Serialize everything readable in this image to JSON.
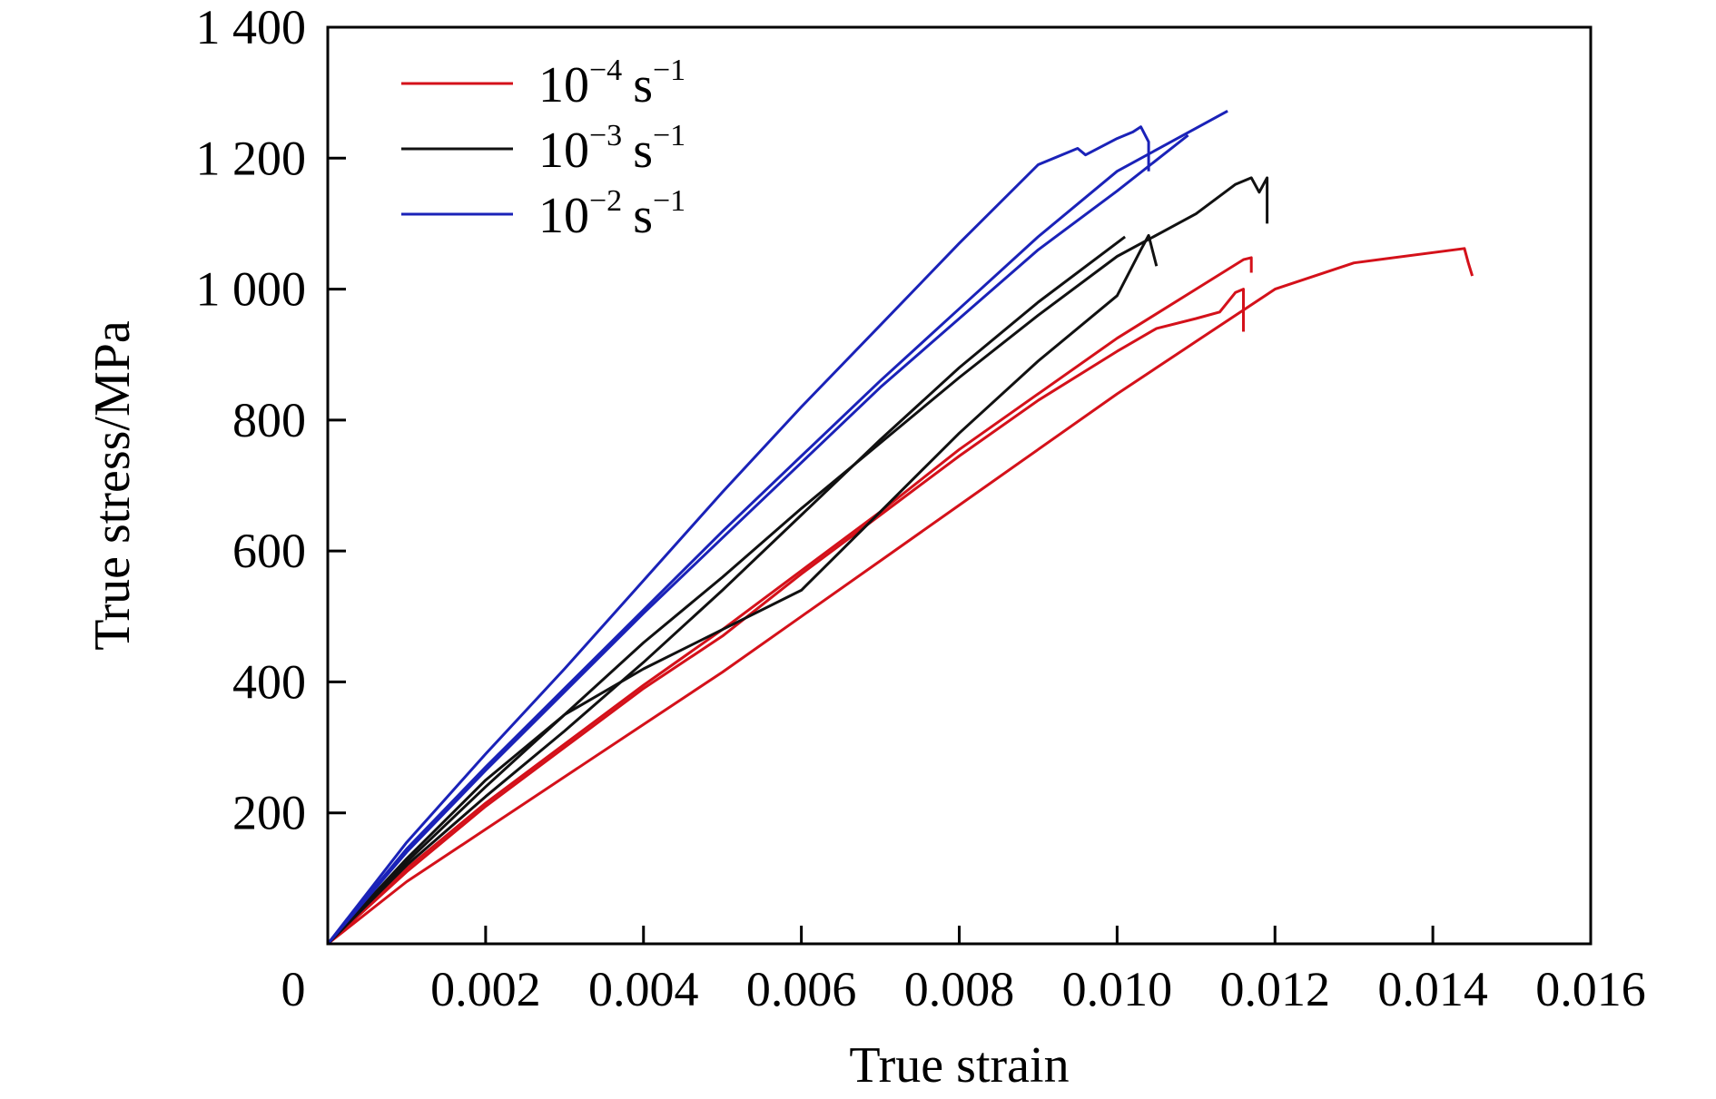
{
  "chart_data": {
    "type": "line",
    "xlabel": "True strain",
    "ylabel": "True stress/MPa",
    "xlim": [
      0,
      0.016
    ],
    "ylim": [
      0,
      1400
    ],
    "x_ticks": [
      {
        "value": 0,
        "label": "0"
      },
      {
        "value": 0.002,
        "label": "0.002"
      },
      {
        "value": 0.004,
        "label": "0.004"
      },
      {
        "value": 0.006,
        "label": "0.006"
      },
      {
        "value": 0.008,
        "label": "0.008"
      },
      {
        "value": 0.01,
        "label": "0.010"
      },
      {
        "value": 0.012,
        "label": "0.012"
      },
      {
        "value": 0.014,
        "label": "0.014"
      },
      {
        "value": 0.016,
        "label": "0.016"
      }
    ],
    "y_ticks": [
      {
        "value": 200,
        "label": "200"
      },
      {
        "value": 400,
        "label": "400"
      },
      {
        "value": 600,
        "label": "600"
      },
      {
        "value": 800,
        "label": "800"
      },
      {
        "value": 1000,
        "label": "1 000"
      },
      {
        "value": 1200,
        "label": "1 200"
      },
      {
        "value": 1400,
        "label": "1 400"
      }
    ],
    "legend": {
      "position": "top-left",
      "entries": [
        {
          "base": "10",
          "exp": "−4",
          "unit": "s",
          "unit_exp": "−1",
          "color": "#d4111a"
        },
        {
          "base": "10",
          "exp": "−3",
          "unit": "s",
          "unit_exp": "−1",
          "color": "#111111"
        },
        {
          "base": "10",
          "exp": "−2",
          "unit": "s",
          "unit_exp": "−1",
          "color": "#1a22b8"
        }
      ]
    },
    "series": [
      {
        "name": "10^-4 s^-1 (specimen 1)",
        "color": "#d4111a",
        "points": [
          [
            0,
            0
          ],
          [
            0.001,
            95
          ],
          [
            0.002,
            175
          ],
          [
            0.003,
            255
          ],
          [
            0.004,
            335
          ],
          [
            0.005,
            415
          ],
          [
            0.006,
            500
          ],
          [
            0.007,
            585
          ],
          [
            0.008,
            670
          ],
          [
            0.009,
            755
          ],
          [
            0.01,
            840
          ],
          [
            0.011,
            920
          ],
          [
            0.012,
            1000
          ],
          [
            0.013,
            1040
          ],
          [
            0.0144,
            1062
          ],
          [
            0.01445,
            1040
          ],
          [
            0.0145,
            1020
          ]
        ]
      },
      {
        "name": "10^-4 s^-1 (specimen 2)",
        "color": "#d4111a",
        "points": [
          [
            0,
            0
          ],
          [
            0.001,
            110
          ],
          [
            0.002,
            210
          ],
          [
            0.003,
            300
          ],
          [
            0.004,
            390
          ],
          [
            0.005,
            470
          ],
          [
            0.006,
            565
          ],
          [
            0.007,
            655
          ],
          [
            0.008,
            745
          ],
          [
            0.009,
            830
          ],
          [
            0.01,
            905
          ],
          [
            0.0105,
            940
          ],
          [
            0.011,
            955
          ],
          [
            0.0113,
            965
          ],
          [
            0.0115,
            995
          ],
          [
            0.0116,
            1000
          ],
          [
            0.0116,
            935
          ]
        ]
      },
      {
        "name": "10^-4 s^-1 (specimen 3)",
        "color": "#d4111a",
        "points": [
          [
            0,
            0
          ],
          [
            0.001,
            115
          ],
          [
            0.002,
            215
          ],
          [
            0.003,
            305
          ],
          [
            0.004,
            395
          ],
          [
            0.005,
            480
          ],
          [
            0.006,
            570
          ],
          [
            0.007,
            660
          ],
          [
            0.008,
            755
          ],
          [
            0.009,
            840
          ],
          [
            0.01,
            925
          ],
          [
            0.011,
            1000
          ],
          [
            0.0116,
            1045
          ],
          [
            0.0117,
            1048
          ],
          [
            0.0117,
            1025
          ]
        ]
      },
      {
        "name": "10^-3 s^-1 (specimen 1)",
        "color": "#111111",
        "points": [
          [
            0,
            0
          ],
          [
            0.001,
            125
          ],
          [
            0.002,
            240
          ],
          [
            0.003,
            350
          ],
          [
            0.004,
            460
          ],
          [
            0.005,
            560
          ],
          [
            0.006,
            665
          ],
          [
            0.007,
            765
          ],
          [
            0.008,
            865
          ],
          [
            0.009,
            960
          ],
          [
            0.01,
            1050
          ],
          [
            0.011,
            1115
          ],
          [
            0.0115,
            1160
          ],
          [
            0.0117,
            1170
          ],
          [
            0.0118,
            1148
          ],
          [
            0.0119,
            1170
          ],
          [
            0.0119,
            1100
          ]
        ]
      },
      {
        "name": "10^-3 s^-1 (specimen 2)",
        "color": "#111111",
        "points": [
          [
            0,
            0
          ],
          [
            0.001,
            130
          ],
          [
            0.002,
            250
          ],
          [
            0.003,
            350
          ],
          [
            0.004,
            420
          ],
          [
            0.005,
            480
          ],
          [
            0.006,
            540
          ],
          [
            0.007,
            660
          ],
          [
            0.008,
            780
          ],
          [
            0.009,
            890
          ],
          [
            0.01,
            990
          ],
          [
            0.0103,
            1060
          ],
          [
            0.0104,
            1082
          ],
          [
            0.0105,
            1035
          ]
        ]
      },
      {
        "name": "10^-3 s^-1 (specimen 3)",
        "color": "#111111",
        "points": [
          [
            0,
            0
          ],
          [
            0.001,
            120
          ],
          [
            0.002,
            225
          ],
          [
            0.003,
            325
          ],
          [
            0.004,
            430
          ],
          [
            0.005,
            540
          ],
          [
            0.006,
            655
          ],
          [
            0.007,
            770
          ],
          [
            0.008,
            880
          ],
          [
            0.009,
            980
          ],
          [
            0.0101,
            1080
          ]
        ]
      },
      {
        "name": "10^-2 s^-1 (specimen 1)",
        "color": "#1a22b8",
        "points": [
          [
            0,
            0
          ],
          [
            0.001,
            155
          ],
          [
            0.002,
            290
          ],
          [
            0.003,
            420
          ],
          [
            0.004,
            555
          ],
          [
            0.005,
            690
          ],
          [
            0.006,
            820
          ],
          [
            0.007,
            945
          ],
          [
            0.008,
            1070
          ],
          [
            0.009,
            1190
          ],
          [
            0.0095,
            1215
          ],
          [
            0.0096,
            1205
          ],
          [
            0.01,
            1230
          ],
          [
            0.0102,
            1240
          ],
          [
            0.0103,
            1248
          ],
          [
            0.0104,
            1225
          ],
          [
            0.0104,
            1180
          ]
        ]
      },
      {
        "name": "10^-2 s^-1 (specimen 2)",
        "color": "#1a22b8",
        "points": [
          [
            0,
            0
          ],
          [
            0.001,
            145
          ],
          [
            0.002,
            270
          ],
          [
            0.003,
            390
          ],
          [
            0.004,
            510
          ],
          [
            0.005,
            630
          ],
          [
            0.006,
            745
          ],
          [
            0.007,
            860
          ],
          [
            0.008,
            970
          ],
          [
            0.009,
            1080
          ],
          [
            0.01,
            1180
          ],
          [
            0.0114,
            1272
          ]
        ]
      },
      {
        "name": "10^-2 s^-1 (specimen 3)",
        "color": "#1a22b8",
        "points": [
          [
            0,
            0
          ],
          [
            0.001,
            140
          ],
          [
            0.002,
            265
          ],
          [
            0.003,
            385
          ],
          [
            0.004,
            505
          ],
          [
            0.005,
            620
          ],
          [
            0.006,
            735
          ],
          [
            0.007,
            850
          ],
          [
            0.008,
            955
          ],
          [
            0.009,
            1060
          ],
          [
            0.01,
            1150
          ],
          [
            0.0109,
            1235
          ]
        ]
      }
    ]
  }
}
